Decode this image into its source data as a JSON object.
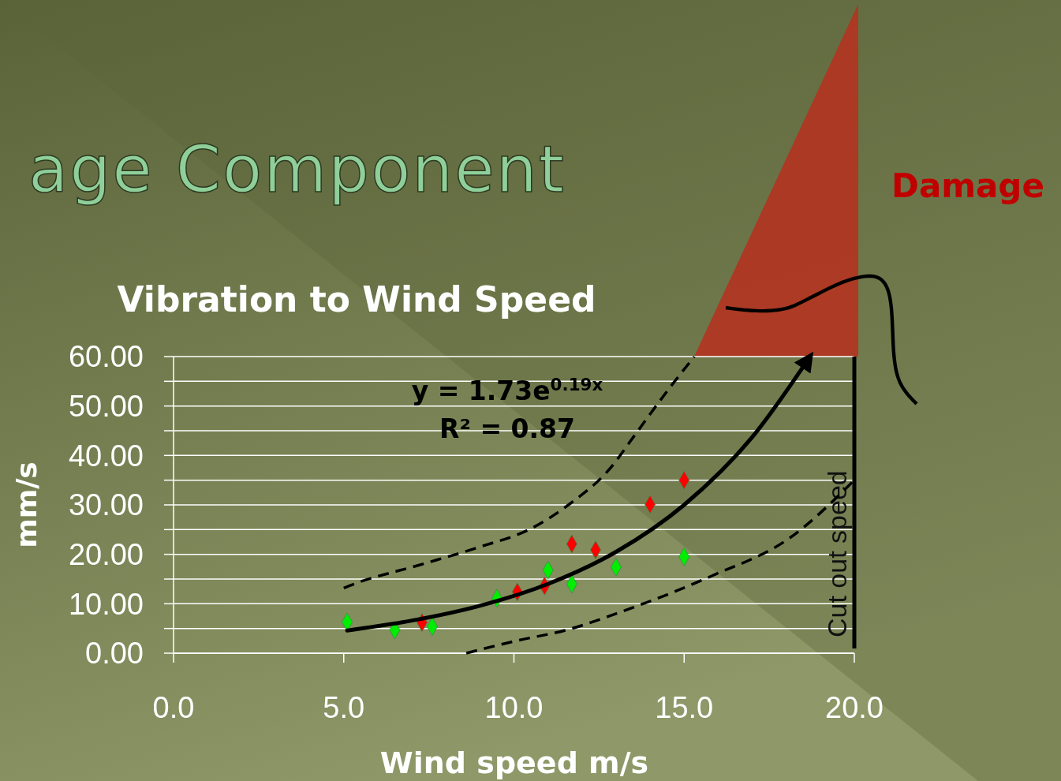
{
  "chart_data": {
    "type": "scatter",
    "title": "Vibration to Wind Speed",
    "xlabel": "Wind speed  m/s",
    "ylabel": "mm/s",
    "annotations": [
      "age Component",
      "y = 1.73e$^{0.19x}$",
      "R² = 0.87",
      "Damage"
    ],
    "xlim": [
      0,
      20
    ],
    "xticks": [
      {
        "value": 0,
        "label": "0.0"
      },
      {
        "value": 5,
        "label": "5.0"
      },
      {
        "value": 10,
        "label": "10.0"
      },
      {
        "value": 15,
        "label": "15.0"
      },
      {
        "value": 20,
        "label": "20.0"
      }
    ],
    "ylim": [
      0,
      60
    ],
    "yticks": [
      {
        "value": 0,
        "label": "0.00"
      },
      {
        "value": 5,
        "label": null
      },
      {
        "value": 10,
        "label": "10.00"
      },
      {
        "value": 15,
        "label": null
      },
      {
        "value": 20,
        "label": "20.00"
      },
      {
        "value": 25,
        "label": null
      },
      {
        "value": 30,
        "label": "30.00"
      },
      {
        "value": 35,
        "label": null
      },
      {
        "value": 40,
        "label": "40.00"
      },
      {
        "value": 45,
        "label": null
      },
      {
        "value": 50,
        "label": "50.00"
      },
      {
        "value": 55,
        "label": null
      },
      {
        "value": 60,
        "label": "60.00"
      }
    ],
    "grid": "y",
    "marker": "diamond",
    "ref_lines": [
      {
        "axis": "x",
        "value": 20,
        "label": "Cut out speed",
        "color": "#000000"
      }
    ],
    "series": [
      {
        "type": "scatter",
        "color": "#00ee00",
        "x": [
          5.1,
          6.5,
          7.6,
          9.5,
          11.0,
          11.7,
          13.0,
          15.0
        ],
        "values": [
          6.3,
          4.7,
          5.4,
          11.1,
          16.8,
          14.0,
          17.4,
          19.5
        ]
      },
      {
        "type": "scatter",
        "color": "#ff0000",
        "x": [
          7.3,
          10.1,
          10.9,
          11.7,
          12.4,
          14.0,
          15.0
        ],
        "values": [
          6.2,
          12.4,
          13.6,
          22.1,
          20.9,
          30.1,
          35.0
        ]
      },
      {
        "type": "line",
        "color": "#000000",
        "marker": "none",
        "line_style": "solid",
        "x": [
          5.1,
          7,
          9,
          11,
          13,
          15,
          17,
          18.7
        ],
        "values": [
          4.6,
          6.6,
          9.6,
          14.0,
          20.5,
          30.0,
          43.7,
          60.0
        ]
      },
      {
        "type": "line",
        "color": "#000000",
        "marker": "none",
        "line_style": "dashed",
        "x": [
          5.0,
          5.3,
          7.2,
          9.0,
          10.5,
          11.6,
          12.9,
          13.4,
          14.6,
          15.3
        ],
        "values": [
          13.2,
          14.0,
          17.8,
          21.5,
          25.2,
          30.0,
          38.0,
          42.7,
          53.9,
          60.0
        ]
      },
      {
        "type": "line",
        "color": "#000000",
        "marker": "none",
        "line_style": "dashed",
        "x": [
          8.6,
          10.0,
          11.6,
          13.4,
          14.7,
          15.8,
          18.1,
          20.0
        ],
        "values": [
          0,
          2.4,
          4.8,
          9.0,
          12.4,
          15.6,
          23.3,
          35.0
        ]
      }
    ]
  }
}
